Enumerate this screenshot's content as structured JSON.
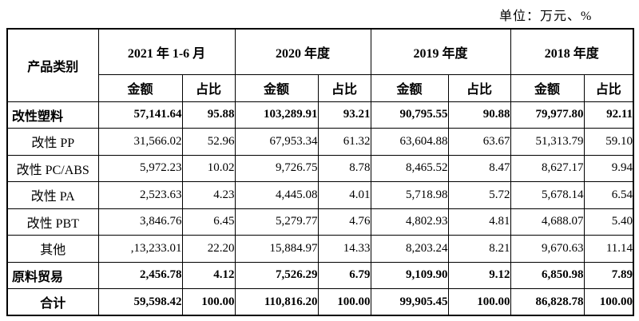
{
  "unit_label": "单位：万元、%",
  "table": {
    "category_header": "产品类别",
    "period_headers": [
      "2021 年 1-6 月",
      "2020 年度",
      "2019 年度",
      "2018 年度"
    ],
    "sub_headers": {
      "amount": "金额",
      "ratio": "占比"
    },
    "rows": [
      {
        "category": "改性塑料",
        "bold": true,
        "align": "left",
        "values": [
          "57,141.64",
          "95.88",
          "103,289.91",
          "93.21",
          "90,795.55",
          "90.88",
          "79,977.80",
          "92.11"
        ]
      },
      {
        "category": "改性 PP",
        "bold": false,
        "align": "center",
        "values": [
          "31,566.02",
          "52.96",
          "67,953.34",
          "61.32",
          "63,604.88",
          "63.67",
          "51,313.79",
          "59.10"
        ]
      },
      {
        "category": "改性 PC/ABS",
        "bold": false,
        "align": "center",
        "values": [
          "5,972.23",
          "10.02",
          "9,726.75",
          "8.78",
          "8,465.52",
          "8.47",
          "8,627.17",
          "9.94"
        ]
      },
      {
        "category": "改性 PA",
        "bold": false,
        "align": "center",
        "values": [
          "2,523.63",
          "4.23",
          "4,445.08",
          "4.01",
          "5,718.98",
          "5.72",
          "5,678.14",
          "6.54"
        ]
      },
      {
        "category": "改性 PBT",
        "bold": false,
        "align": "center",
        "values": [
          "3,846.76",
          "6.45",
          "5,279.77",
          "4.76",
          "4,802.93",
          "4.81",
          "4,688.07",
          "5.40"
        ]
      },
      {
        "category": "其他",
        "bold": false,
        "align": "center",
        "values": [
          ",13,233.01",
          "22.20",
          "15,884.97",
          "14.33",
          "8,203.24",
          "8.21",
          "9,670.63",
          "11.14"
        ]
      },
      {
        "category": "原料贸易",
        "bold": true,
        "align": "left",
        "values": [
          "2,456.78",
          "4.12",
          "7,526.29",
          "6.79",
          "9,109.90",
          "9.12",
          "6,850.98",
          "7.89"
        ]
      },
      {
        "category": "合计",
        "bold": true,
        "align": "center",
        "values": [
          "59,598.42",
          "100.00",
          "110,816.20",
          "100.00",
          "99,905.45",
          "100.00",
          "86,828.78",
          "100.00"
        ]
      }
    ]
  }
}
